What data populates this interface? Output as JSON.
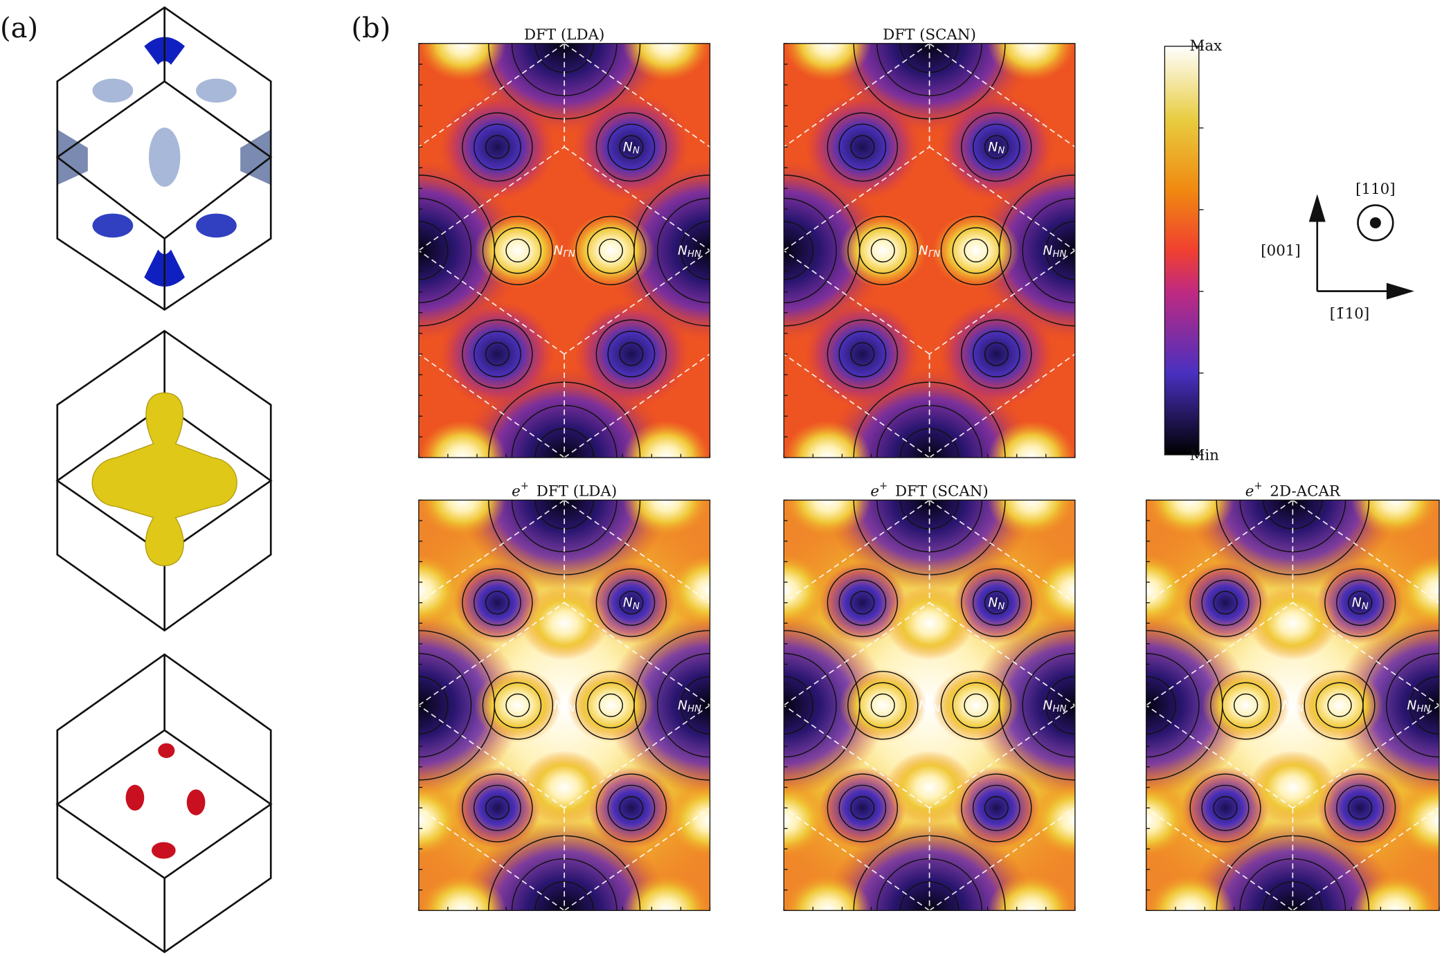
{
  "labels": {
    "a": "(a)",
    "b": "(b)"
  },
  "panels": [
    {
      "prefix": "",
      "sup": "",
      "text": "DFT (LDA)"
    },
    {
      "prefix": "",
      "sup": "",
      "text": "DFT (SCAN)"
    },
    {
      "prefix": "e",
      "sup": "+",
      "text": "DFT (LDA)"
    },
    {
      "prefix": "e",
      "sup": "+",
      "text": "DFT (SCAN)"
    },
    {
      "prefix": "e",
      "sup": "+",
      "text": "2D-ACAR"
    }
  ],
  "points": {
    "n": {
      "main": "N",
      "sub": "N"
    },
    "gn": {
      "main": "N",
      "sub": "ΓN"
    },
    "hn": {
      "main": "N",
      "sub": "HN"
    }
  },
  "colorbar": {
    "max": "Max",
    "min": "Min"
  },
  "axes": {
    "out": "[110]",
    "up": "[001]",
    "right": "[1̄10]"
  }
}
